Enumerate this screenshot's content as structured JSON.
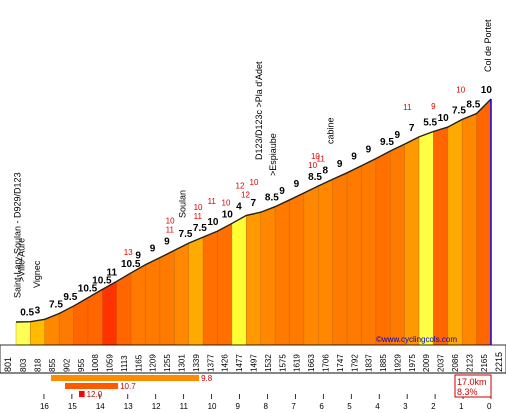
{
  "chart_data": {
    "type": "area",
    "title": "",
    "xlabel": "",
    "ylabel": "",
    "x_unit": "km",
    "x_ticks": [
      "16",
      "15",
      "14",
      "13",
      "12",
      "11",
      "10",
      "9",
      "8",
      "7",
      "6",
      "5",
      "4",
      "3",
      "2",
      "1",
      "0"
    ],
    "start_altitude_label": "801",
    "end_altitude_label": "2215",
    "summary": {
      "distance": "17.0km",
      "avg_grade": "8.3%"
    },
    "segments": [
      {
        "alt": "803",
        "grade": "0.5",
        "color": "#ffff55"
      },
      {
        "alt": "818",
        "grade": "3",
        "color": "#ffbb00"
      },
      {
        "alt": "855",
        "grade": "7.5",
        "color": "#ff8800"
      },
      {
        "alt": "902",
        "grade": "9.5",
        "color": "#ff7a00"
      },
      {
        "alt": "955",
        "grade": "10.5",
        "color": "#ff6600"
      },
      {
        "alt": "1008",
        "grade": "10.5",
        "color": "#ff6600"
      },
      {
        "alt": "1059",
        "grade": "11",
        "color": "#ff3300"
      },
      {
        "alt": "1113",
        "grade": "10.5",
        "color": "#ff6600"
      },
      {
        "alt": "1165",
        "grade": "9",
        "color": "#ff7a00"
      },
      {
        "alt": "1209",
        "grade": "9",
        "color": "#ff7a00"
      },
      {
        "alt": "1255",
        "grade": "9",
        "color": "#ff7a00"
      },
      {
        "alt": "1301",
        "grade": "7.5",
        "color": "#ff8800"
      },
      {
        "alt": "1339",
        "grade": "7.5",
        "color": "#ffaa00"
      },
      {
        "alt": "1377",
        "grade": "10",
        "color": "#ff7000"
      },
      {
        "alt": "1426",
        "grade": "10",
        "color": "#ff7000"
      },
      {
        "alt": "1477",
        "grade": "4",
        "color": "#ffff33"
      },
      {
        "alt": "1497",
        "grade": "7",
        "color": "#ff9900"
      },
      {
        "alt": "1532",
        "grade": "8.5",
        "color": "#ff8800"
      },
      {
        "alt": "1575",
        "grade": "9",
        "color": "#ff7a00"
      },
      {
        "alt": "1619",
        "grade": "9",
        "color": "#ff7a00"
      },
      {
        "alt": "1663",
        "grade": "8.5",
        "color": "#ff8800"
      },
      {
        "alt": "1706",
        "grade": "8",
        "color": "#ff8800"
      },
      {
        "alt": "1747",
        "grade": "9",
        "color": "#ff7a00"
      },
      {
        "alt": "1792",
        "grade": "9",
        "color": "#ff7a00"
      },
      {
        "alt": "1837",
        "grade": "9",
        "color": "#ff7a00"
      },
      {
        "alt": "1885",
        "grade": "9.5",
        "color": "#ff7000"
      },
      {
        "alt": "1929",
        "grade": "9",
        "color": "#ff7a00"
      },
      {
        "alt": "1975",
        "grade": "7",
        "color": "#ff9900"
      },
      {
        "alt": "2009",
        "grade": "5.5",
        "color": "#ffff44"
      },
      {
        "alt": "2037",
        "grade": "10",
        "color": "#ff6600"
      },
      {
        "alt": "2086",
        "grade": "7.5",
        "color": "#ffaa00"
      },
      {
        "alt": "2123",
        "grade": "8.5",
        "color": "#ff8800"
      },
      {
        "alt": "2165",
        "grade": "10",
        "color": "#ff6600"
      }
    ],
    "max_grades": [
      {
        "x": "13",
        "value": "13"
      },
      {
        "x": "11.5",
        "value": "10"
      },
      {
        "x": "11.5",
        "value": "11"
      },
      {
        "x": "10.5",
        "value": "10"
      },
      {
        "x": "10.5",
        "value": "11"
      },
      {
        "x": "10",
        "value": "11"
      },
      {
        "x": "9.5",
        "value": "10"
      },
      {
        "x": "9",
        "value": "12"
      },
      {
        "x": "8.8",
        "value": "12"
      },
      {
        "x": "8.5",
        "value": "10"
      },
      {
        "x": "6.4",
        "value": "10"
      },
      {
        "x": "6.3",
        "value": "10"
      },
      {
        "x": "6.1",
        "value": "11"
      },
      {
        "x": "3.0",
        "value": "11"
      },
      {
        "x": "2",
        "value": "9"
      },
      {
        "x": "1.1",
        "value": "10"
      }
    ],
    "steep_bars": [
      {
        "label": "9.8",
        "length_km": "5.3",
        "color": "#ff8c00"
      },
      {
        "label": "10.7",
        "length_km": "1.9",
        "color": "#ff5a00"
      },
      {
        "label": "12.0",
        "length_km": "0.2",
        "color": "#ff0000"
      }
    ],
    "places": [
      {
        "x": "16.95",
        "name": "Saint-Lary-Soulan - D929/D123"
      },
      {
        "x": "16.8",
        "name": ">Ville-Aure"
      },
      {
        "x": "16.25",
        "name": "Vignec"
      },
      {
        "x": "11.05",
        "name": "Soulan"
      },
      {
        "x": "8.3",
        "name": "D123/D123c >Pla d'Adet"
      },
      {
        "x": "7.8",
        "name": ">Espiaube"
      },
      {
        "x": "5.75",
        "name": "cabine"
      },
      {
        "x": "0.1",
        "name": "Col de Portet"
      }
    ],
    "site": "©www.cyclingcols.com"
  }
}
